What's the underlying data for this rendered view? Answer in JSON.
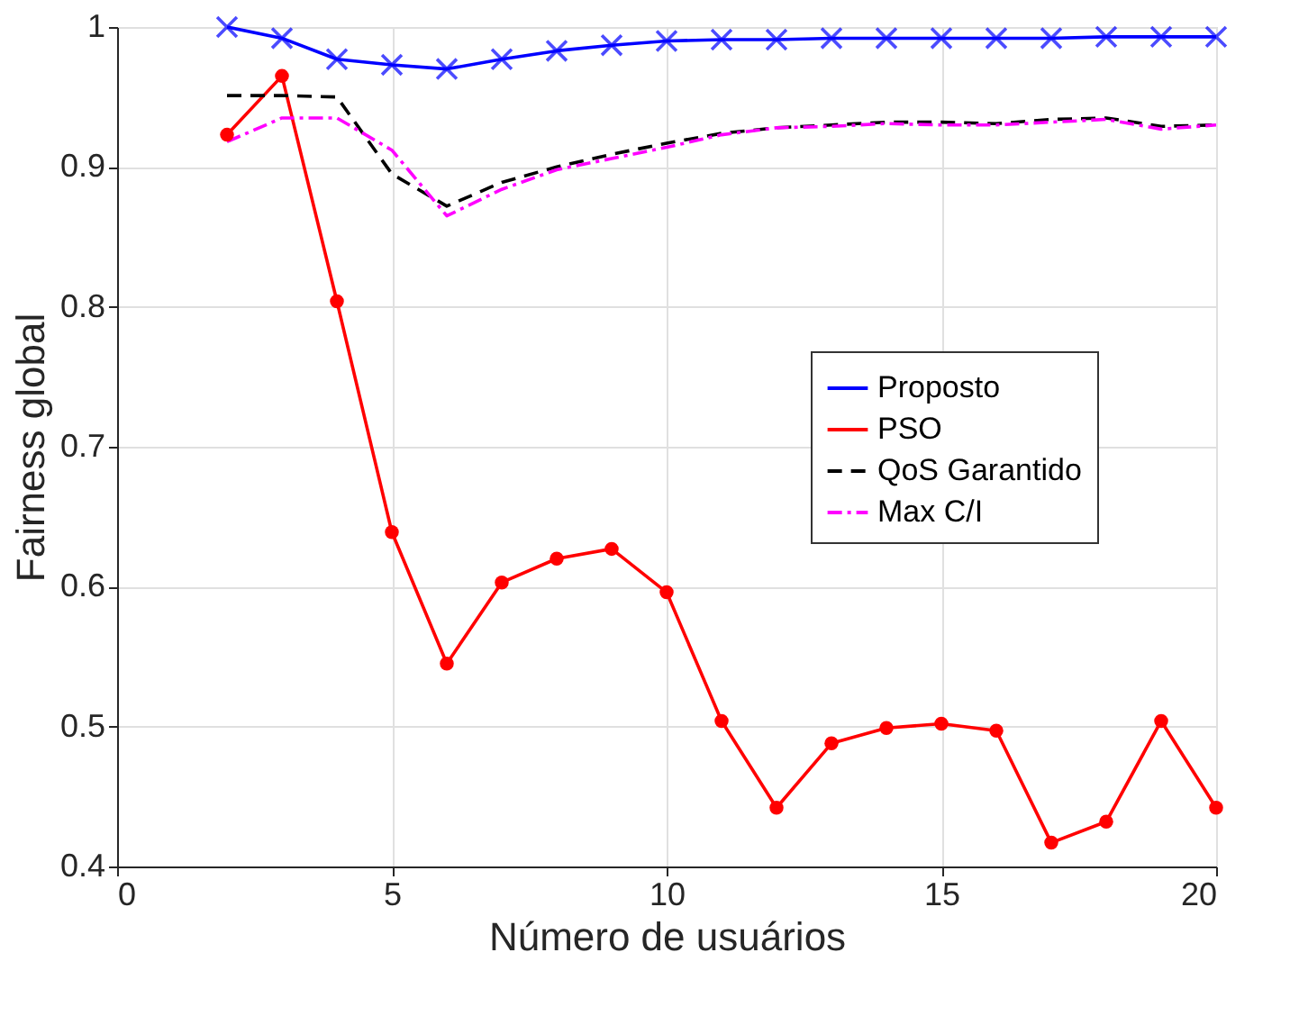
{
  "chart_data": {
    "type": "line",
    "xlabel": "Número de usuários",
    "ylabel": "Fairness global",
    "x": [
      2,
      3,
      4,
      5,
      6,
      7,
      8,
      9,
      10,
      11,
      12,
      13,
      14,
      15,
      16,
      17,
      18,
      19,
      20
    ],
    "series": [
      {
        "name": "Proposto",
        "color": "#0000ff",
        "marker": "cross",
        "line_style": "solid",
        "values": [
          1.0,
          0.992,
          0.977,
          0.973,
          0.97,
          0.977,
          0.983,
          0.987,
          0.99,
          0.991,
          0.991,
          0.992,
          0.992,
          0.992,
          0.992,
          0.992,
          0.993,
          0.993,
          0.993
        ]
      },
      {
        "name": "PSO",
        "color": "#ff0000",
        "marker": "circle",
        "line_style": "solid",
        "values": [
          0.923,
          0.965,
          0.804,
          0.639,
          0.545,
          0.603,
          0.62,
          0.627,
          0.596,
          0.504,
          0.442,
          0.488,
          0.499,
          0.502,
          0.497,
          0.417,
          0.432,
          0.504,
          0.442
        ]
      },
      {
        "name": "QoS Garantido",
        "color": "#000000",
        "marker": "none",
        "line_style": "dashed",
        "values": [
          0.951,
          0.951,
          0.95,
          0.895,
          0.872,
          0.889,
          0.9,
          0.909,
          0.917,
          0.924,
          0.928,
          0.93,
          0.932,
          0.932,
          0.931,
          0.934,
          0.935,
          0.929,
          0.93
        ]
      },
      {
        "name": "Max C/I",
        "color": "#ff00ff",
        "marker": "none",
        "line_style": "dashdot",
        "values": [
          0.918,
          0.935,
          0.935,
          0.912,
          0.865,
          0.884,
          0.898,
          0.906,
          0.914,
          0.923,
          0.928,
          0.929,
          0.931,
          0.93,
          0.93,
          0.932,
          0.934,
          0.927,
          0.93
        ]
      }
    ],
    "xlim": [
      0,
      20
    ],
    "xticks": [
      0,
      5,
      10,
      15,
      20
    ],
    "ylim": [
      0.4,
      1
    ],
    "yticks": [
      0.4,
      0.5,
      0.6,
      0.7,
      0.8,
      0.9,
      1
    ],
    "grid": true,
    "legend": "right"
  }
}
